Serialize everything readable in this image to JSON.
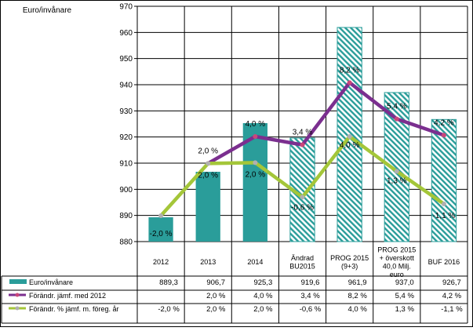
{
  "chart_data": {
    "type": "bar",
    "ylabel": "Euro/invånare",
    "ylim": [
      880,
      970
    ],
    "yticks": [
      880,
      890,
      900,
      910,
      920,
      930,
      940,
      950,
      960,
      970
    ],
    "categories": [
      [
        "2012"
      ],
      [
        "2013"
      ],
      [
        "2014"
      ],
      [
        "Ändrad",
        "BU2015"
      ],
      [
        "PROG 2015",
        "(9+3)"
      ],
      [
        "PROG 2015",
        "+ överskott",
        "40,0 Milj.",
        "euro"
      ],
      [
        "BUF 2016"
      ]
    ],
    "series": [
      {
        "name": "Euro/invånare",
        "kind": "bar",
        "values": [
          889.3,
          906.7,
          925.3,
          919.6,
          961.9,
          937.0,
          926.7
        ],
        "value_labels": [
          "889,3",
          "906,7",
          "925,3",
          "919,6",
          "961,9",
          "937,0",
          "926,7"
        ],
        "bar_styles": [
          "solid",
          "solid",
          "solid",
          "hatched",
          "hatched",
          "hatched",
          "hatched"
        ]
      },
      {
        "name": "Förändr. jämf. med 2012",
        "kind": "line",
        "y_positions": [
          null,
          909.9,
          920.2,
          917.0,
          940.8,
          926.9,
          920.7
        ],
        "value_labels": [
          "",
          "2,0 %",
          "4,0 %",
          "3,4 %",
          "8,2 %",
          "5,4 %",
          "4,2 %"
        ],
        "point_labels": [
          "",
          "2,0 %",
          "4,0 %",
          "3,4 %",
          "8,2 %",
          "5,4 %",
          "4,2 %"
        ]
      },
      {
        "name": "Förändr. % jämf. m. föreg. år",
        "kind": "line",
        "y_positions": [
          889.9,
          909.9,
          910.2,
          897.0,
          920.2,
          906.9,
          894.4
        ],
        "value_labels": [
          "-2,0 %",
          "2,0 %",
          "2,0 %",
          "-0,6 %",
          "4,0 %",
          "1,3 %",
          "-1,1 %"
        ],
        "point_labels": [
          "-2,0 %",
          "2,0 %",
          "2,0 %",
          "-0,6 %",
          "4,0 %",
          "1,3 %",
          "-1,1 %"
        ]
      }
    ],
    "colors": {
      "bar": "#2a9d9a",
      "hatch": "#2a9d9a",
      "line1": "#7b2f8f",
      "line1_marker": "#c9477a",
      "line2": "#a4c639",
      "line2_marker": "#b0b0b0",
      "grid": "#000000"
    }
  }
}
